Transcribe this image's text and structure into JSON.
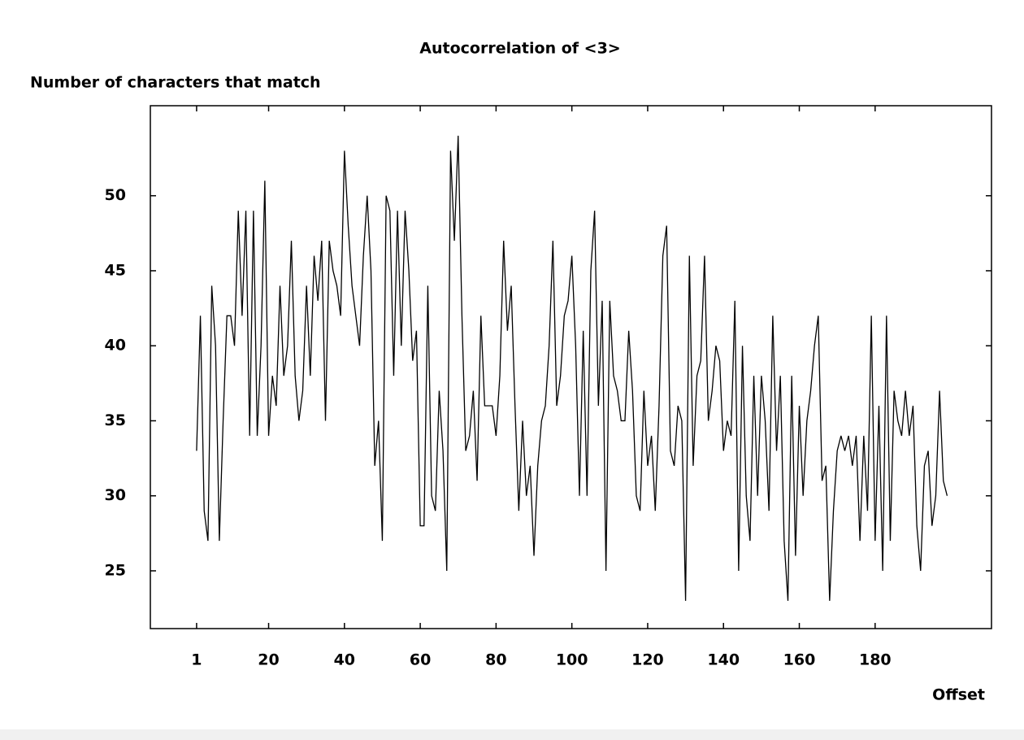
{
  "chart_data": {
    "type": "line",
    "title": "Autocorrelation of <3>",
    "y_label": "Number of characters that match",
    "x_label": "Offset",
    "color": "#000000",
    "x": [
      1,
      2,
      3,
      4,
      5,
      6,
      7,
      8,
      9,
      10,
      11,
      12,
      13,
      14,
      15,
      16,
      17,
      18,
      19,
      20,
      21,
      22,
      23,
      24,
      25,
      26,
      27,
      28,
      29,
      30,
      31,
      32,
      33,
      34,
      35,
      36,
      37,
      38,
      39,
      40,
      41,
      42,
      43,
      44,
      45,
      46,
      47,
      48,
      49,
      50,
      51,
      52,
      53,
      54,
      55,
      56,
      57,
      58,
      59,
      60,
      61,
      62,
      63,
      64,
      65,
      66,
      67,
      68,
      69,
      70,
      71,
      72,
      73,
      74,
      75,
      76,
      77,
      78,
      79,
      80,
      81,
      82,
      83,
      84,
      85,
      86,
      87,
      88,
      89,
      90,
      91,
      92,
      93,
      94,
      95,
      96,
      97,
      98,
      99,
      100,
      101,
      102,
      103,
      104,
      105,
      106,
      107,
      108,
      109,
      110,
      111,
      112,
      113,
      114,
      115,
      116,
      117,
      118,
      119,
      120,
      121,
      122,
      123,
      124,
      125,
      126,
      127,
      128,
      129,
      130,
      131,
      132,
      133,
      134,
      135,
      136,
      137,
      138,
      139,
      140,
      141,
      142,
      143,
      144,
      145,
      146,
      147,
      148,
      149,
      150,
      151,
      152,
      153,
      154,
      155,
      156,
      157,
      158,
      159,
      160,
      161,
      162,
      163,
      164,
      165,
      166,
      167,
      168,
      169,
      170,
      171,
      172,
      173,
      174,
      175,
      176,
      177,
      178,
      179,
      180,
      181,
      182,
      183,
      184,
      185,
      186,
      187,
      188,
      189,
      190,
      191,
      192,
      193,
      194,
      195,
      196,
      197,
      198,
      199
    ],
    "values": [
      33,
      42,
      29,
      27,
      44,
      40,
      27,
      35,
      42,
      42,
      40,
      49,
      42,
      49,
      34,
      49,
      34,
      40,
      51,
      34,
      38,
      36,
      44,
      38,
      40,
      47,
      38,
      35,
      37,
      44,
      38,
      46,
      43,
      47,
      35,
      47,
      45,
      44,
      42,
      53,
      48,
      44,
      42,
      40,
      46,
      50,
      45,
      32,
      35,
      27,
      50,
      49,
      38,
      49,
      40,
      49,
      45,
      39,
      41,
      28,
      28,
      44,
      30,
      29,
      37,
      33,
      25,
      53,
      47,
      54,
      42,
      33,
      34,
      37,
      31,
      42,
      36,
      36,
      36,
      34,
      38,
      47,
      41,
      44,
      36,
      29,
      35,
      30,
      32,
      26,
      32,
      35,
      36,
      40,
      47,
      36,
      38,
      42,
      43,
      46,
      40,
      30,
      41,
      30,
      45,
      49,
      36,
      43,
      25,
      43,
      38,
      37,
      35,
      35,
      41,
      37,
      30,
      29,
      37,
      32,
      34,
      29,
      36,
      46,
      48,
      33,
      32,
      36,
      35,
      23,
      46,
      32,
      38,
      39,
      46,
      35,
      37,
      40,
      39,
      33,
      35,
      34,
      43,
      25,
      40,
      30,
      27,
      38,
      30,
      38,
      35,
      29,
      42,
      33,
      38,
      27,
      23,
      38,
      26,
      36,
      30,
      35,
      37,
      40,
      42,
      31,
      32,
      23,
      29,
      33,
      34,
      33,
      34,
      32,
      34,
      27,
      34,
      29,
      42,
      27,
      36,
      25,
      42,
      27,
      37,
      35,
      34,
      37,
      34,
      36,
      28,
      25,
      32,
      33,
      28,
      30,
      37,
      31,
      30
    ],
    "xlim": [
      -11.2,
      210.7
    ],
    "ylim": [
      21.15,
      56
    ],
    "xticks": [
      1,
      20,
      40,
      60,
      80,
      100,
      120,
      140,
      160,
      180
    ],
    "yticks": [
      25,
      30,
      35,
      40,
      45,
      50
    ]
  }
}
